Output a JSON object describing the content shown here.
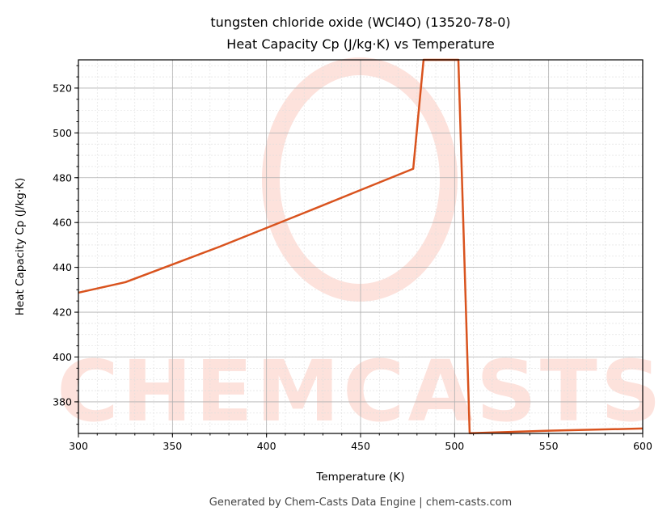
{
  "chart_data": {
    "type": "line",
    "title": "tungsten chloride oxide (WCl4O) (13520-78-0)",
    "subtitle": "Heat Capacity Cp (J/kg·K) vs Temperature",
    "x_label": "Temperature (K)",
    "y_label": "Heat Capacity Cp (J/kg·K)",
    "footer": "Generated by Chem-Casts Data Engine | chem-casts.com",
    "watermark": "CHEMCASTS",
    "x": [
      300,
      325,
      350,
      375,
      400,
      425,
      450,
      478,
      483.5,
      502,
      508,
      550,
      600
    ],
    "series": [
      {
        "name": "Cp",
        "color": "#d9531e",
        "values": [
          428.7,
          433.4,
          441.3,
          449.2,
          457.6,
          466.0,
          474.5,
          484.0,
          532.6,
          532.6,
          366.0,
          367.1,
          368.1
        ]
      }
    ],
    "xlim": [
      300,
      600
    ],
    "xticks": [
      300,
      350,
      400,
      450,
      500,
      550,
      600
    ],
    "ylim": [
      365.9,
      532.6
    ],
    "yticks": [
      380,
      400,
      420,
      440,
      460,
      480,
      500,
      520
    ],
    "grid": true,
    "x_minor_step": 10,
    "y_minor_step": 5
  }
}
